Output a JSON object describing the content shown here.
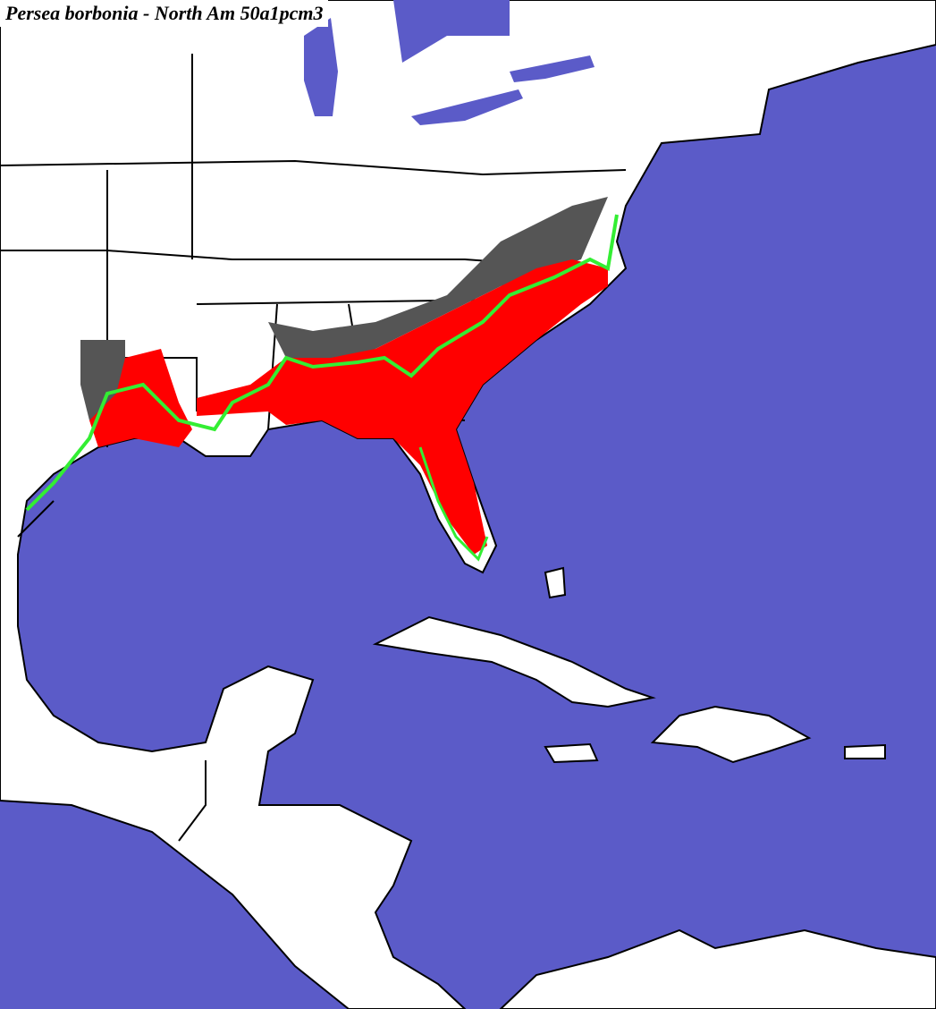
{
  "title": "Persea borbonia - North Am 50a1pcm3"
}
